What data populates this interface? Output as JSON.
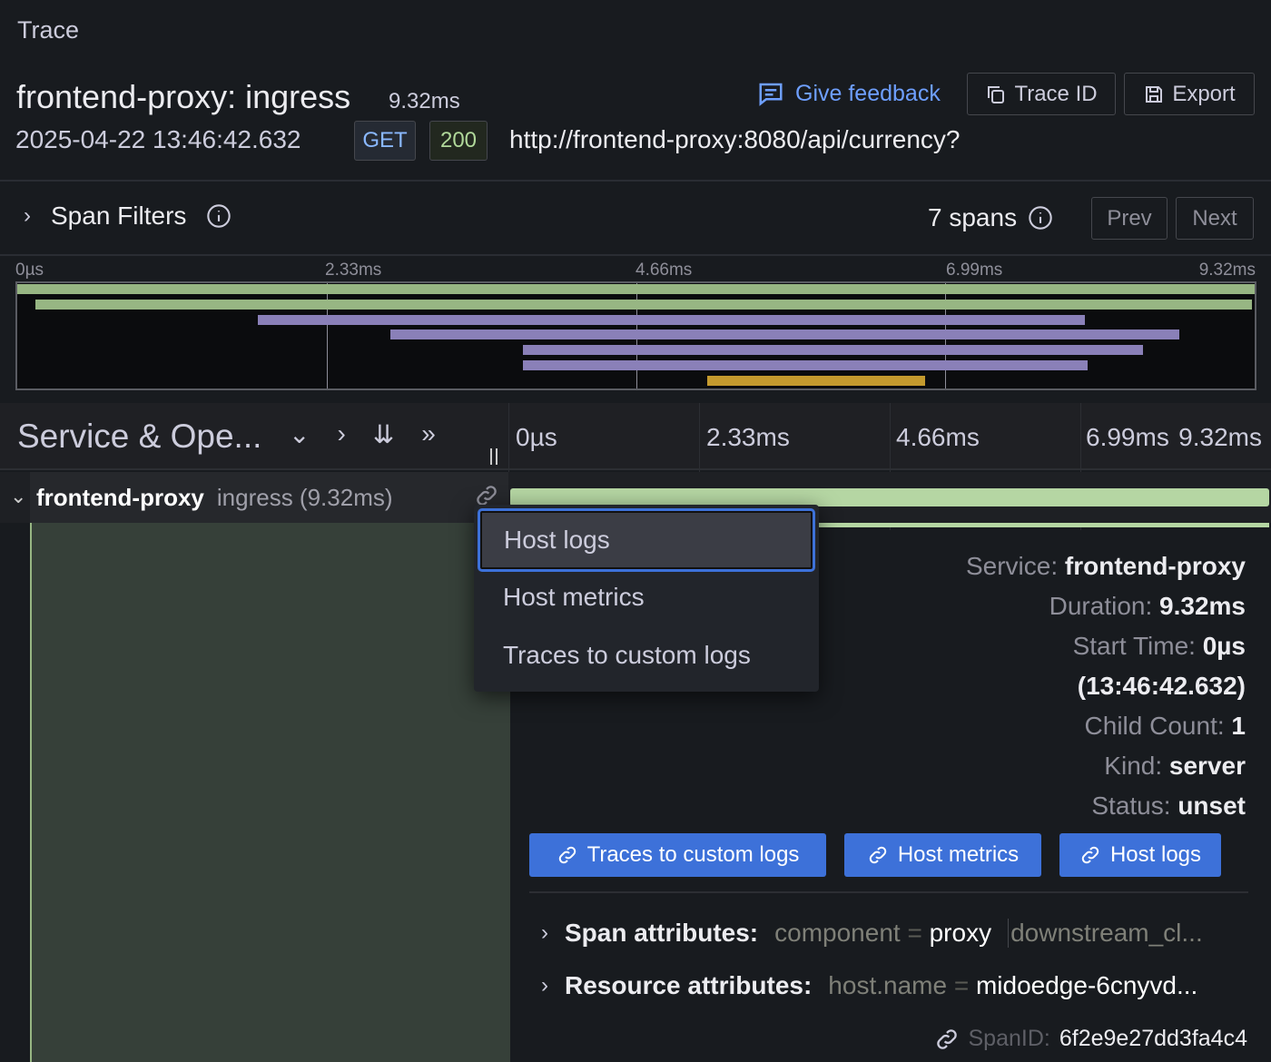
{
  "panel_title": "Trace",
  "header": {
    "title": "frontend-proxy: ingress",
    "duration": "9.32ms",
    "timestamp": "2025-04-22 13:46:42.632",
    "method": "GET",
    "status_code": "200",
    "url": "http://frontend-proxy:8080/api/currency?",
    "feedback": "Give feedback",
    "trace_id": "Trace ID",
    "export": "Export"
  },
  "filters": {
    "label": "Span Filters",
    "span_count": "7 spans",
    "prev": "Prev",
    "next": "Next"
  },
  "minimap": {
    "ticks": [
      "0µs",
      "2.33ms",
      "4.66ms",
      "6.99ms",
      "9.32ms"
    ],
    "total_ms": 9.32,
    "bars": [
      {
        "start": 0,
        "end": 9.32,
        "color": "#97b683"
      },
      {
        "start": 0.14,
        "end": 9.3,
        "color": "#97b683"
      },
      {
        "start": 1.81,
        "end": 8.04,
        "color": "#8a80b8"
      },
      {
        "start": 2.81,
        "end": 8.75,
        "color": "#8a80b8"
      },
      {
        "start": 3.81,
        "end": 8.48,
        "color": "#8a80b8"
      },
      {
        "start": 3.81,
        "end": 8.06,
        "color": "#8a80b8"
      },
      {
        "start": 5.2,
        "end": 6.84,
        "color": "#c49a2e"
      }
    ]
  },
  "timeline": {
    "column_title": "Service & Ope...",
    "ticks": [
      "0µs",
      "2.33ms",
      "4.66ms",
      "6.99ms",
      "9.32ms"
    ]
  },
  "span": {
    "service": "frontend-proxy",
    "operation": "ingress (9.32ms)"
  },
  "menu": {
    "items": [
      "Host logs",
      "Host metrics",
      "Traces to custom logs"
    ]
  },
  "details": {
    "rows": [
      {
        "k": "Service:",
        "v": "frontend-proxy"
      },
      {
        "k": "Duration:",
        "v": "9.32ms"
      },
      {
        "k": "Start Time:",
        "v": "0µs"
      },
      {
        "k": "",
        "v": "(13:46:42.632)"
      },
      {
        "k": "Child Count:",
        "v": "1"
      },
      {
        "k": "Kind:",
        "v": "server"
      },
      {
        "k": "Status:",
        "v": "unset"
      }
    ],
    "links": [
      "Traces to custom logs",
      "Host metrics",
      "Host logs"
    ],
    "span_attr_label": "Span attributes:",
    "span_attr_key": "component",
    "span_attr_val": "proxy",
    "span_attr_more": "downstream_cl...",
    "res_attr_label": "Resource attributes:",
    "res_attr_key": "host.name",
    "res_attr_val": "midoedge-6cnyvd...",
    "eq": "=",
    "span_id_label": "SpanID:",
    "span_id": "6f2e9e27dd3fa4c4"
  }
}
